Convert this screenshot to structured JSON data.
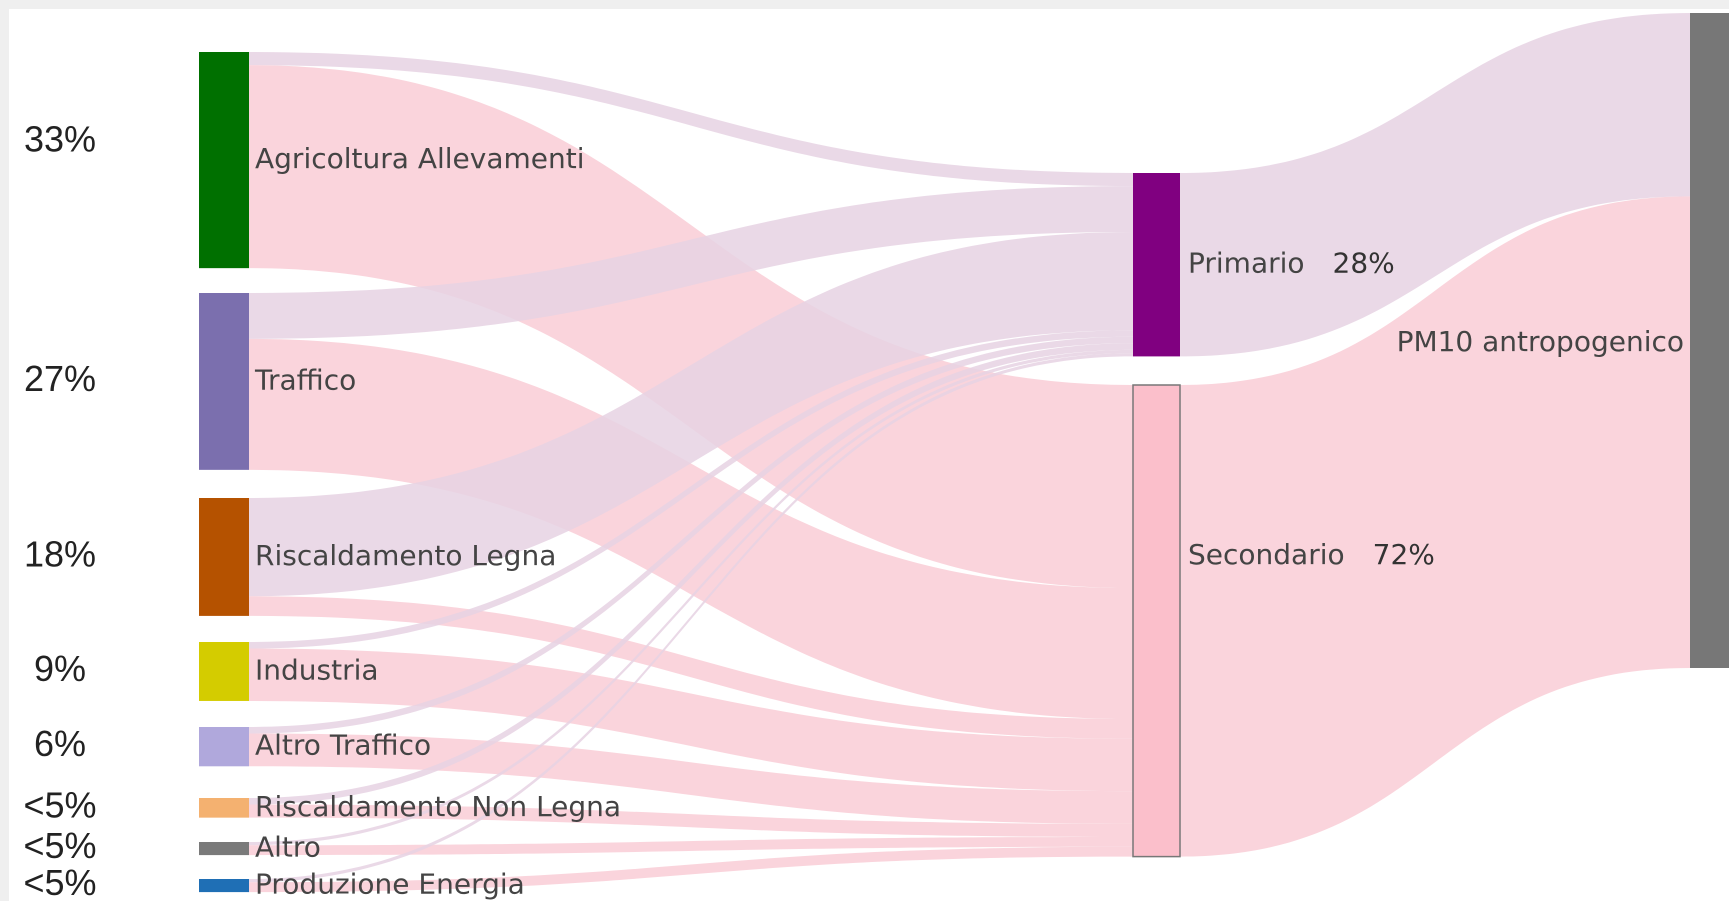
{
  "chart_data": {
    "type": "sankey",
    "nodes": [
      {
        "name": "Agricoltura Allevamenti",
        "color": "#007000",
        "value": 33,
        "value_label": "33%"
      },
      {
        "name": "Traffico",
        "color": "#7b6fae",
        "value": 27,
        "value_label": "27%"
      },
      {
        "name": "Riscaldamento Legna",
        "color": "#b55200",
        "value": 18,
        "value_label": "18%"
      },
      {
        "name": "Industria",
        "color": "#d4cc00",
        "value": 9,
        "value_label": "9%"
      },
      {
        "name": "Altro Traffico",
        "color": "#b0a8dc",
        "value": 6,
        "value_label": "6%"
      },
      {
        "name": "Riscaldamento Non Legna",
        "color": "#f4b170",
        "value": 3,
        "value_label": "<5%"
      },
      {
        "name": "Altro",
        "color": "#7a7a7a",
        "value": 2,
        "value_label": "<5%"
      },
      {
        "name": "Produzione Energia",
        "color": "#1f6fb5",
        "value": 2,
        "value_label": "<5%"
      },
      {
        "name": "Primario",
        "color": "#800080",
        "value": 28,
        "value_label": "28%"
      },
      {
        "name": "Secondario",
        "color": "#fbbfcb",
        "value": 72,
        "value_label": "72%"
      },
      {
        "name": "PM10 antropogenico",
        "color": "#777777"
      }
    ],
    "links": [
      {
        "source": 0,
        "target": 8,
        "value": 2,
        "color": "#e6d2e3"
      },
      {
        "source": 0,
        "target": 9,
        "value": 31,
        "color": "#f9ccd6"
      },
      {
        "source": 1,
        "target": 8,
        "value": 7,
        "color": "#e6d2e3"
      },
      {
        "source": 1,
        "target": 9,
        "value": 20,
        "color": "#f9ccd6"
      },
      {
        "source": 2,
        "target": 8,
        "value": 15,
        "color": "#e6d2e3"
      },
      {
        "source": 2,
        "target": 9,
        "value": 3,
        "color": "#f9ccd6"
      },
      {
        "source": 3,
        "target": 8,
        "value": 1,
        "color": "#e6d2e3"
      },
      {
        "source": 3,
        "target": 9,
        "value": 8,
        "color": "#f9ccd6"
      },
      {
        "source": 4,
        "target": 8,
        "value": 1,
        "color": "#e6d2e3"
      },
      {
        "source": 4,
        "target": 9,
        "value": 5,
        "color": "#f9ccd6"
      },
      {
        "source": 5,
        "target": 8,
        "value": 1,
        "color": "#e6d2e3"
      },
      {
        "source": 5,
        "target": 9,
        "value": 2,
        "color": "#f9ccd6"
      },
      {
        "source": 6,
        "target": 8,
        "value": 0.5,
        "color": "#e6d2e3"
      },
      {
        "source": 6,
        "target": 9,
        "value": 1.5,
        "color": "#f9ccd6"
      },
      {
        "source": 7,
        "target": 8,
        "value": 0.5,
        "color": "#e6d2e3"
      },
      {
        "source": 7,
        "target": 9,
        "value": 1.5,
        "color": "#f9ccd6"
      },
      {
        "source": 8,
        "target": 10,
        "value": 28,
        "color": "#e6d2e3"
      },
      {
        "source": 9,
        "target": 10,
        "value": 72,
        "color": "#f9ccd6"
      }
    ]
  }
}
